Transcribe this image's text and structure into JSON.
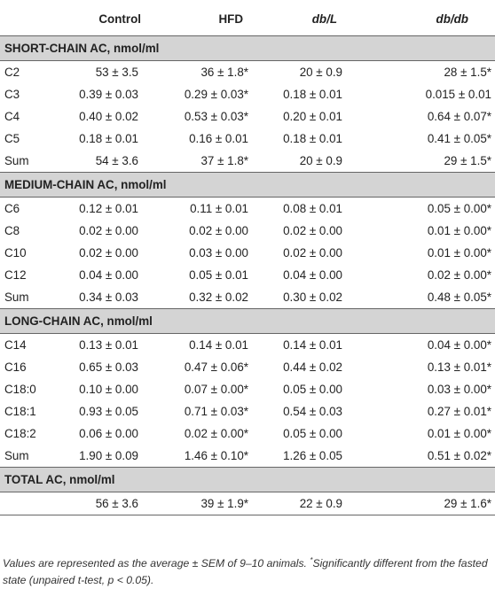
{
  "headers": {
    "control": "Control",
    "hfd": "HFD",
    "dbl": "db/L",
    "dbdb": "db/db"
  },
  "sections": [
    {
      "title": "SHORT-CHAIN AC, nmol/ml",
      "rows": [
        {
          "label": "C2",
          "control": "53 ± 3.5",
          "hfd": "36 ± 1.8*",
          "dbl": "20 ± 0.9",
          "dbdb": "28 ± 1.5*"
        },
        {
          "label": "C3",
          "control": "0.39 ± 0.03",
          "hfd": "0.29 ± 0.03*",
          "dbl": "0.18 ± 0.01",
          "dbdb": "0.015 ± 0.01"
        },
        {
          "label": "C4",
          "control": "0.40 ± 0.02",
          "hfd": "0.53 ± 0.03*",
          "dbl": "0.20 ± 0.01",
          "dbdb": "0.64 ± 0.07*"
        },
        {
          "label": "C5",
          "control": "0.18 ± 0.01",
          "hfd": "0.16 ± 0.01",
          "dbl": "0.18 ± 0.01",
          "dbdb": "0.41 ± 0.05*"
        },
        {
          "label": "Sum",
          "control": "54 ± 3.6",
          "hfd": "37 ± 1.8*",
          "dbl": "20 ± 0.9",
          "dbdb": "29 ± 1.5*"
        }
      ]
    },
    {
      "title": "MEDIUM-CHAIN AC, nmol/ml",
      "rows": [
        {
          "label": "C6",
          "control": "0.12 ± 0.01",
          "hfd": "0.11 ± 0.01",
          "dbl": "0.08 ± 0.01",
          "dbdb": "0.05 ± 0.00*"
        },
        {
          "label": "C8",
          "control": "0.02 ± 0.00",
          "hfd": "0.02 ± 0.00",
          "dbl": "0.02 ± 0.00",
          "dbdb": "0.01 ± 0.00*"
        },
        {
          "label": "C10",
          "control": "0.02 ± 0.00",
          "hfd": "0.03 ± 0.00",
          "dbl": "0.02 ± 0.00",
          "dbdb": "0.01 ± 0.00*"
        },
        {
          "label": "C12",
          "control": "0.04 ± 0.00",
          "hfd": "0.05 ± 0.01",
          "dbl": "0.04 ± 0.00",
          "dbdb": "0.02 ± 0.00*"
        },
        {
          "label": "Sum",
          "control": "0.34 ± 0.03",
          "hfd": "0.32 ± 0.02",
          "dbl": "0.30 ± 0.02",
          "dbdb": "0.48 ± 0.05*"
        }
      ]
    },
    {
      "title": "LONG-CHAIN AC, nmol/ml",
      "rows": [
        {
          "label": "C14",
          "control": "0.13 ± 0.01",
          "hfd": "0.14 ± 0.01",
          "dbl": "0.14 ± 0.01",
          "dbdb": "0.04 ± 0.00*"
        },
        {
          "label": "C16",
          "control": "0.65 ± 0.03",
          "hfd": "0.47 ± 0.06*",
          "dbl": "0.44 ± 0.02",
          "dbdb": "0.13 ± 0.01*"
        },
        {
          "label": "C18:0",
          "control": "0.10 ± 0.00",
          "hfd": "0.07 ± 0.00*",
          "dbl": "0.05 ± 0.00",
          "dbdb": "0.03 ± 0.00*"
        },
        {
          "label": "C18:1",
          "control": "0.93 ± 0.05",
          "hfd": "0.71 ± 0.03*",
          "dbl": "0.54 ± 0.03",
          "dbdb": "0.27 ± 0.01*"
        },
        {
          "label": "C18:2",
          "control": "0.06 ± 0.00",
          "hfd": "0.02 ± 0.00*",
          "dbl": "0.05 ± 0.00",
          "dbdb": "0.01 ± 0.00*"
        },
        {
          "label": "Sum",
          "control": "1.90 ± 0.09",
          "hfd": "1.46 ± 0.10*",
          "dbl": "1.26 ± 0.05",
          "dbdb": "0.51 ± 0.02*"
        }
      ]
    },
    {
      "title": "TOTAL AC, nmol/ml",
      "rows": [
        {
          "label": "",
          "control": "56 ± 3.6",
          "hfd": "39 ± 1.9*",
          "dbl": "22 ± 0.9",
          "dbdb": "29 ± 1.6*"
        }
      ]
    }
  ],
  "footnote": {
    "part1": "Values are represented as the average ± SEM of 9–10 animals. ",
    "star": "*",
    "part2": "Significantly different from the fasted state (unpaired t-test, p < 0.05)."
  }
}
